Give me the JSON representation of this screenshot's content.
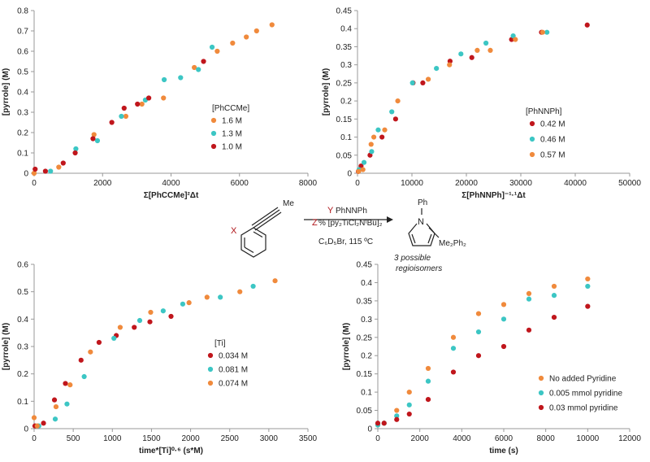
{
  "colors": {
    "orange": "#F08A3C",
    "teal": "#3CC6C4",
    "red": "#C0161C",
    "axis": "#999999",
    "scheme_red": "#B0151A"
  },
  "chart_data": [
    {
      "id": "c1",
      "type": "scatter",
      "xlabel": "Σ[PhCCMe]²Δt",
      "ylabel": "[pyrrole] (M)",
      "xlim": [
        0,
        8000
      ],
      "ylim": [
        0,
        0.8
      ],
      "xticks": [
        0,
        2000,
        4000,
        6000,
        8000
      ],
      "yticks": [
        0,
        0.1,
        0.2,
        0.3,
        0.4,
        0.5,
        0.6,
        0.7,
        0.8
      ],
      "legend_title": "[PhCCMe]",
      "series": [
        {
          "name": "1.6  M",
          "color": "#F08A3C",
          "x": [
            0,
            720,
            1750,
            2680,
            3150,
            3780,
            4680,
            5350,
            5800,
            6200,
            6500,
            6950
          ],
          "y": [
            0,
            0.03,
            0.19,
            0.28,
            0.34,
            0.37,
            0.52,
            0.6,
            0.64,
            0.67,
            0.7,
            0.73
          ]
        },
        {
          "name": "1.3  M",
          "color": "#3CC6C4",
          "x": [
            480,
            1220,
            1850,
            2550,
            3250,
            3800,
            4280,
            4800,
            5200
          ],
          "y": [
            0.01,
            0.12,
            0.16,
            0.28,
            0.36,
            0.46,
            0.47,
            0.51,
            0.62
          ]
        },
        {
          "name": "1.0  M",
          "color": "#C0161C",
          "x": [
            30,
            330,
            850,
            1200,
            1720,
            2270,
            2630,
            3020,
            3350,
            4950
          ],
          "y": [
            0.02,
            0.01,
            0.05,
            0.1,
            0.17,
            0.25,
            0.32,
            0.34,
            0.37,
            0.55
          ]
        }
      ]
    },
    {
      "id": "c2",
      "type": "scatter",
      "xlabel": "Σ[PhNNPh]⁻¹·¹Δt",
      "ylabel": "[pyrrole] (M)",
      "xlim": [
        0,
        50000
      ],
      "ylim": [
        0,
        0.45
      ],
      "xticks": [
        0,
        10000,
        20000,
        30000,
        40000,
        50000
      ],
      "yticks": [
        0,
        0.05,
        0.1,
        0.15,
        0.2,
        0.25,
        0.3,
        0.35,
        0.4,
        0.45
      ],
      "legend_title": "[PhNNPh]",
      "series": [
        {
          "name": "0.42 M",
          "color": "#C0161C",
          "x": [
            150,
            650,
            2300,
            4500,
            7000,
            10200,
            12000,
            17000,
            21000,
            28300,
            33800,
            42200
          ],
          "y": [
            0.005,
            0.02,
            0.05,
            0.1,
            0.15,
            0.25,
            0.25,
            0.31,
            0.32,
            0.37,
            0.39,
            0.41
          ]
        },
        {
          "name": "0.46 M",
          "color": "#3CC6C4",
          "x": [
            300,
            1200,
            2600,
            3800,
            6300,
            10100,
            14500,
            19000,
            23600,
            28600,
            34800
          ],
          "y": [
            0.01,
            0.03,
            0.06,
            0.12,
            0.17,
            0.25,
            0.29,
            0.33,
            0.36,
            0.38,
            0.39
          ]
        },
        {
          "name": "0.57 M",
          "color": "#F08A3C",
          "x": [
            200,
            1000,
            2500,
            3000,
            5000,
            7400,
            13000,
            16900,
            22000,
            24400,
            29000,
            34000
          ],
          "y": [
            0.005,
            0.01,
            0.08,
            0.1,
            0.12,
            0.2,
            0.26,
            0.3,
            0.34,
            0.34,
            0.37,
            0.39
          ]
        }
      ]
    },
    {
      "id": "c3",
      "type": "scatter",
      "xlabel": "time*[Ti]⁰·⁶ (s*M)",
      "ylabel": "[pyrrole] (M)",
      "xlim": [
        0,
        3500
      ],
      "ylim": [
        0,
        0.6
      ],
      "xticks": [
        0,
        500,
        1000,
        1500,
        2000,
        2500,
        3000,
        3500
      ],
      "yticks": [
        0,
        0.1,
        0.2,
        0.3,
        0.4,
        0.5,
        0.6
      ],
      "legend_title": "[Ti]",
      "series": [
        {
          "name": "0.034 M",
          "color": "#C0161C",
          "x": [
            10,
            120,
            260,
            400,
            600,
            830,
            1050,
            1280,
            1480,
            1750
          ],
          "y": [
            0.01,
            0.02,
            0.105,
            0.165,
            0.25,
            0.315,
            0.34,
            0.37,
            0.39,
            0.41
          ]
        },
        {
          "name": "0.081 M",
          "color": "#3CC6C4",
          "x": [
            60,
            270,
            420,
            640,
            1020,
            1350,
            1650,
            1900,
            2380,
            2800
          ],
          "y": [
            0.01,
            0.035,
            0.09,
            0.19,
            0.33,
            0.395,
            0.43,
            0.455,
            0.48,
            0.52
          ]
        },
        {
          "name": "0.074 M",
          "color": "#F08A3C",
          "x": [
            0,
            40,
            280,
            460,
            720,
            1100,
            1490,
            1980,
            2210,
            2630,
            3080
          ],
          "y": [
            0.04,
            0.01,
            0.08,
            0.16,
            0.28,
            0.37,
            0.425,
            0.46,
            0.48,
            0.5,
            0.54
          ]
        }
      ]
    },
    {
      "id": "c4",
      "type": "scatter",
      "xlabel": "time (s)",
      "ylabel": "[pyrrole] (M)",
      "xlim": [
        0,
        12000
      ],
      "ylim": [
        0,
        0.45
      ],
      "xticks": [
        0,
        2000,
        4000,
        6000,
        8000,
        10000,
        12000
      ],
      "yticks": [
        0,
        0.05,
        0.1,
        0.15,
        0.2,
        0.25,
        0.3,
        0.35,
        0.4,
        0.45
      ],
      "legend_title": "",
      "series": [
        {
          "name": "No added Pyridine",
          "color": "#F08A3C",
          "x": [
            0,
            300,
            900,
            1500,
            2400,
            3600,
            4800,
            6000,
            7200,
            8400,
            10000
          ],
          "y": [
            0.01,
            0.015,
            0.05,
            0.1,
            0.165,
            0.25,
            0.315,
            0.34,
            0.37,
            0.39,
            0.41
          ]
        },
        {
          "name": "0.005 mmol pyridine",
          "color": "#3CC6C4",
          "x": [
            0,
            300,
            900,
            1500,
            2400,
            3600,
            4800,
            6000,
            7200,
            8400,
            10000
          ],
          "y": [
            0.01,
            0.015,
            0.035,
            0.065,
            0.13,
            0.22,
            0.265,
            0.3,
            0.355,
            0.365,
            0.39
          ]
        },
        {
          "name": "0.03 mmol pyridine",
          "color": "#C0161C",
          "x": [
            0,
            300,
            900,
            1500,
            2400,
            3600,
            4800,
            6000,
            7200,
            8400,
            10000
          ],
          "y": [
            0.015,
            0.015,
            0.025,
            0.04,
            0.08,
            0.155,
            0.2,
            0.225,
            0.27,
            0.305,
            0.335
          ]
        }
      ]
    }
  ],
  "scheme": {
    "x_label": "X",
    "me_label": "Me",
    "y_label": "Y",
    "y_reagent": "PhNNPh",
    "z_label": "Z",
    "z_reagent": "% [py₂TiCl₂NᵗBu]₂",
    "conditions": "C₆D₅Br, 115 ºC",
    "ph_label": "Ph",
    "n_label": "N",
    "subst_label": "Me₂Ph₂",
    "note_line1": "3 possible",
    "note_line2": "regioisomers"
  }
}
